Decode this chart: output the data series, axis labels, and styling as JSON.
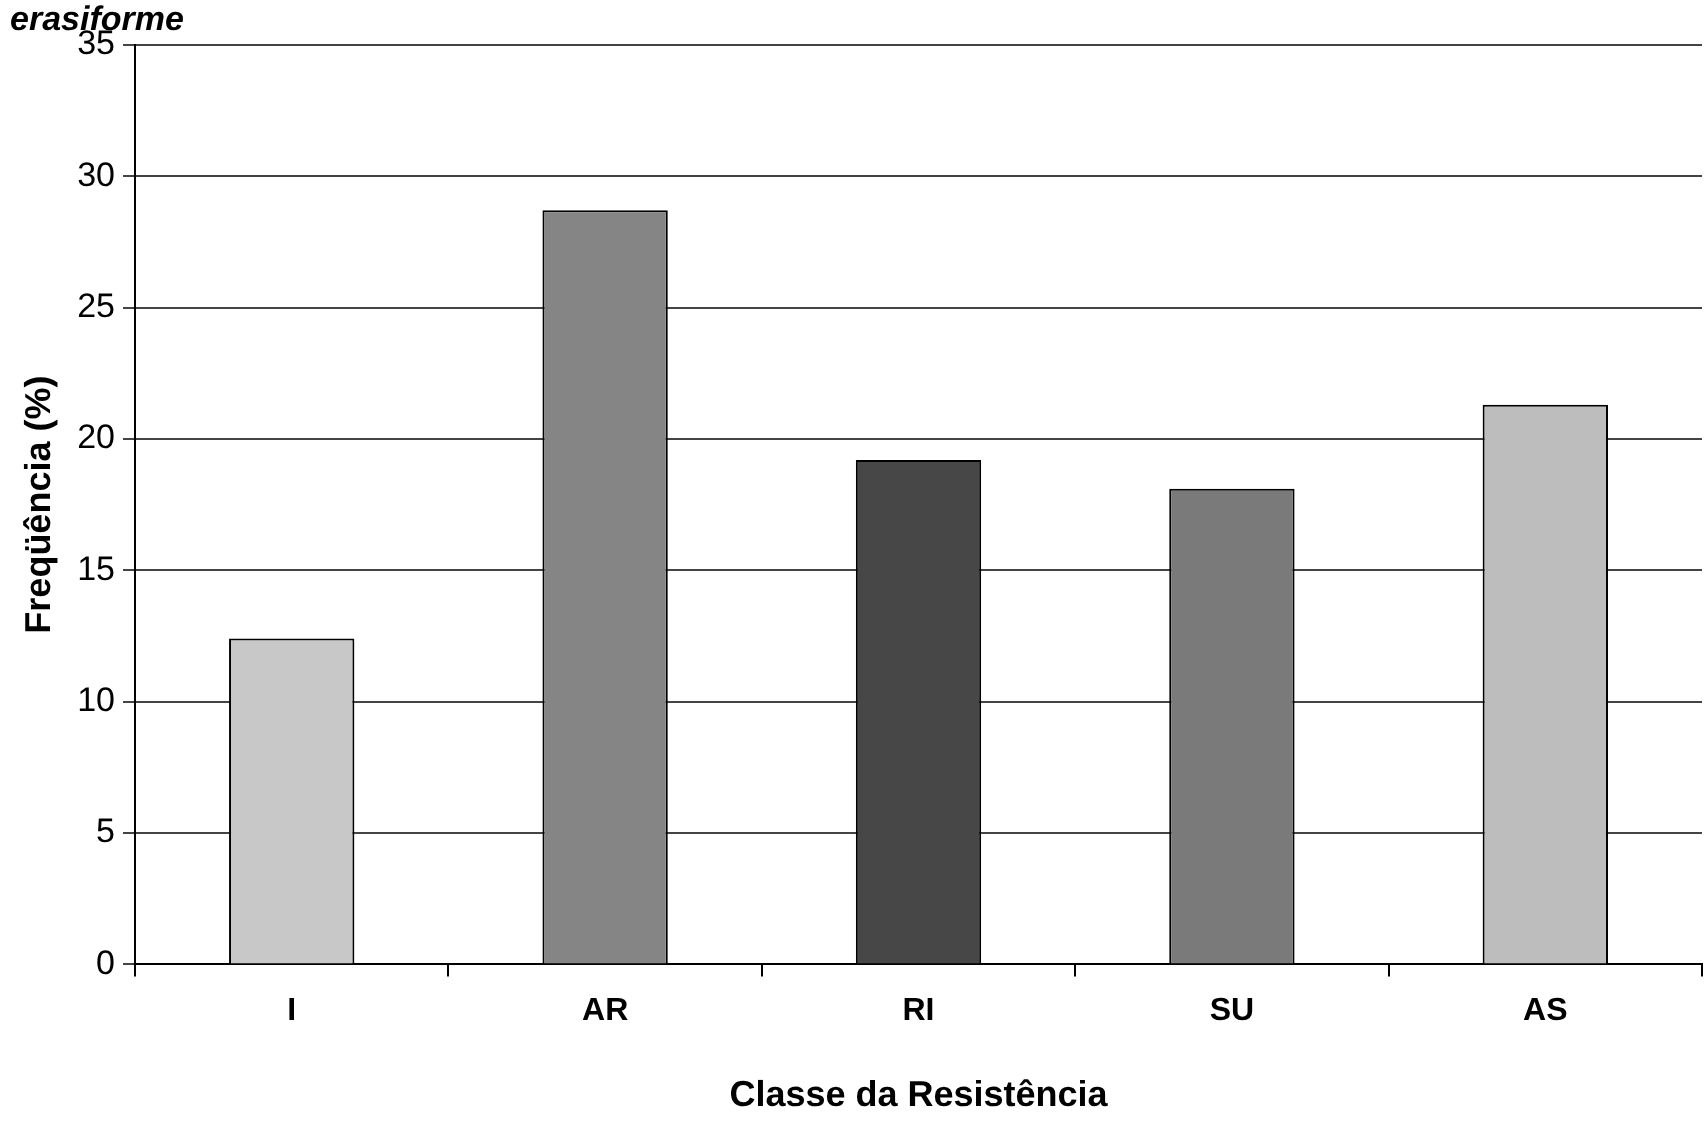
{
  "chart_data": {
    "type": "bar",
    "title": "erasiforme",
    "xlabel": "Classe da Resistência",
    "ylabel": "Freqüência (%)",
    "categories": [
      "I",
      "AR",
      "RI",
      "SU",
      "AS"
    ],
    "values": [
      12.4,
      28.7,
      19.2,
      18.1,
      21.3
    ],
    "colors": [
      "#c8c8c8",
      "#858585",
      "#474747",
      "#7a7a7a",
      "#bdbdbd"
    ],
    "ylim": [
      0,
      35
    ],
    "yticks": [
      0,
      5,
      10,
      15,
      20,
      25,
      30,
      35
    ],
    "grid": "y",
    "legend": false
  }
}
